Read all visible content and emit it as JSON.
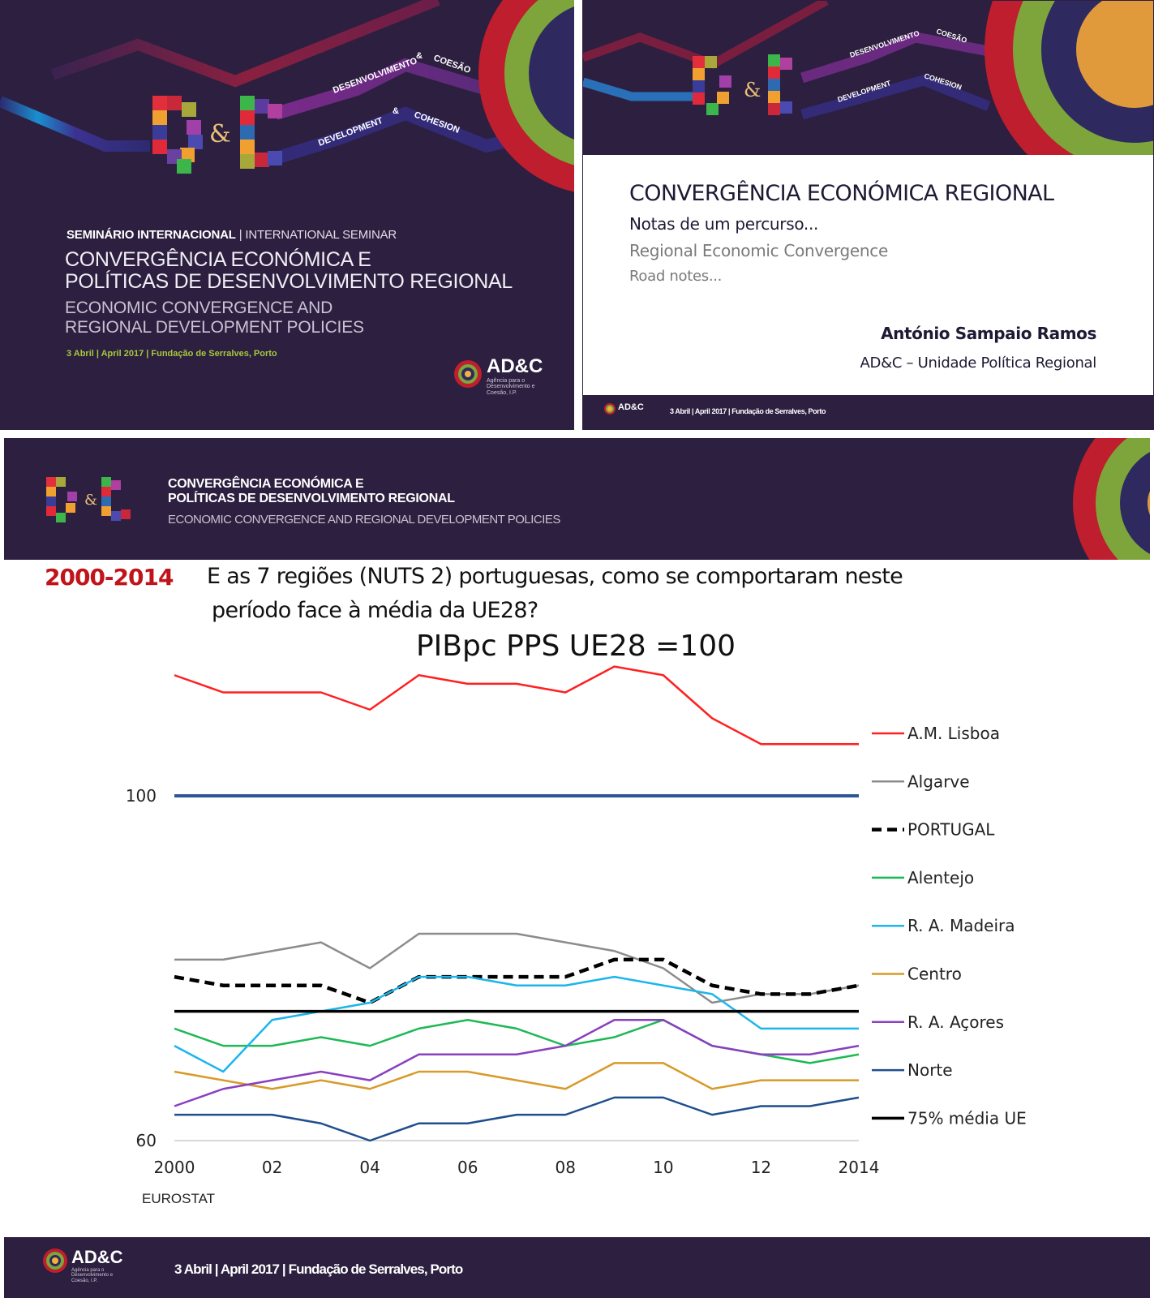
{
  "slide1": {
    "kicker_bold": "SEMINÁRIO INTERNACIONAL",
    "kicker_sep": "|",
    "kicker_thin": "INTERNATIONAL SEMINAR",
    "title_line1": "CONVERGÊNCIA ECONÓMICA E",
    "title_line2": "POLÍTICAS DE DESENVOLVIMENTO REGIONAL",
    "subtitle_line1": "ECONOMIC CONVERGENCE AND",
    "subtitle_line2": "REGIONAL DEVELOPMENT POLICIES",
    "date_place": "3 Abril | April 2017 | Fundação de Serralves, Porto",
    "ribbon_top_pt": "DESENVOLVIMENTO",
    "ribbon_top_amp": "&",
    "ribbon_top_pt2": "COESÃO",
    "ribbon_bottom_en": "DEVELOPMENT",
    "ribbon_bottom_amp": "&",
    "ribbon_bottom_en2": "COHESION",
    "logo_amp": "&",
    "logo": {
      "wordmark": "AD&C",
      "tagline_1": "Agência para o",
      "tagline_2": "Desenvolvimento e",
      "tagline_3": "Coesão, I.P."
    }
  },
  "slide2": {
    "title": "CONVERGÊNCIA ECONÓMICA REGIONAL",
    "subtitle_pt": "Notas de um percurso...",
    "title_en": "Regional Economic Convergence",
    "subtitle_en": "Road notes...",
    "author": "António Sampaio Ramos",
    "unit": "AD&C – Unidade Política Regional",
    "footer_date": "3 Abril | April 2017 | Fundação de Serralves, Porto",
    "logo_wordmark": "AD&C",
    "ribbon_top_pt": "DESENVOLVIMENTO",
    "ribbon_top_pt2": "COESÃO",
    "ribbon_bottom_en": "DEVELOPMENT",
    "ribbon_bottom_en2": "COHESION",
    "amp": "&"
  },
  "slide3": {
    "header_title_line1": "CONVERGÊNCIA ECONÓMICA E",
    "header_title_line2": "POLÍTICAS DE DESENVOLVIMENTO REGIONAL",
    "header_subtitle": "ECONOMIC CONVERGENCE AND REGIONAL DEVELOPMENT POLICIES",
    "period": "2000-2014",
    "question_line1": "E as 7 regiões (NUTS 2) portuguesas, como se comportaram neste",
    "question_line2": "período face à média da UE28?",
    "footer_date": "3 Abril | April 2017 | Fundação de Serralves, Porto",
    "logo_wordmark": "AD&C",
    "logo_amp": "&",
    "logo_tagline_1": "Agência para o",
    "logo_tagline_2": "Desenvolvimento e",
    "logo_tagline_3": "Coesão, I.P."
  },
  "colors": {
    "brand_purple": "#2c1f3f",
    "brand_red": "#be1e2d",
    "brand_green": "#7ea53b",
    "brand_navy": "#2e2a60",
    "brand_orange": "#e09a3c",
    "accent_date_green": "#a7c83d",
    "period_red": "#c0141b"
  },
  "chart_data": {
    "type": "line",
    "title": "PIBpc PPS UE28 =100",
    "source": "EUROSTAT",
    "xlabel": "",
    "ylabel": "",
    "x": [
      2000,
      2001,
      2002,
      2003,
      2004,
      2005,
      2006,
      2007,
      2008,
      2009,
      2010,
      2011,
      2012,
      2013,
      2014
    ],
    "xtick_values": [
      2000,
      2002,
      2004,
      2006,
      2008,
      2010,
      2012,
      2014
    ],
    "xtick_labels": [
      "2000",
      "02",
      "04",
      "06",
      "08",
      "10",
      "12",
      "2014"
    ],
    "ytick_values": [
      60,
      100
    ],
    "ytick_labels": [
      "60",
      "100"
    ],
    "ylim": [
      60,
      116
    ],
    "grid": false,
    "legend_position": "right",
    "reference_line": {
      "name": "UE28",
      "value": 100,
      "color": "#2f5597"
    },
    "series": [
      {
        "name": "A.M. Lisboa",
        "color": "#ff2020",
        "dash": false,
        "values": [
          114,
          112,
          112,
          112,
          110,
          114,
          113,
          113,
          112,
          115,
          114,
          109,
          106,
          106,
          106
        ]
      },
      {
        "name": "Algarve",
        "color": "#8c8c8c",
        "dash": false,
        "values": [
          81,
          81,
          82,
          83,
          80,
          84,
          84,
          84,
          83,
          82,
          80,
          76,
          77,
          77,
          78
        ]
      },
      {
        "name": "PORTUGAL",
        "color": "#000000",
        "dash": true,
        "values": [
          79,
          78,
          78,
          78,
          76,
          79,
          79,
          79,
          79,
          81,
          81,
          78,
          77,
          77,
          78
        ]
      },
      {
        "name": "Alentejo",
        "color": "#1db954",
        "dash": false,
        "values": [
          73,
          71,
          71,
          72,
          71,
          73,
          74,
          73,
          71,
          72,
          74,
          71,
          70,
          69,
          70
        ]
      },
      {
        "name": "R. A. Madeira",
        "color": "#1cb5ec",
        "dash": false,
        "values": [
          71,
          68,
          74,
          75,
          76,
          79,
          79,
          78,
          78,
          79,
          78,
          77,
          73,
          73,
          73
        ]
      },
      {
        "name": "Centro",
        "color": "#d89a2a",
        "dash": false,
        "values": [
          68,
          67,
          66,
          67,
          66,
          68,
          68,
          67,
          66,
          69,
          69,
          66,
          67,
          67,
          67
        ]
      },
      {
        "name": "R. A. Açores",
        "color": "#8a3fbf",
        "dash": false,
        "values": [
          64,
          66,
          67,
          68,
          67,
          70,
          70,
          70,
          71,
          74,
          74,
          71,
          70,
          70,
          71
        ]
      },
      {
        "name": "Norte",
        "color": "#1f4e8c",
        "dash": false,
        "values": [
          63,
          63,
          63,
          62,
          60,
          62,
          62,
          63,
          63,
          65,
          65,
          63,
          64,
          64,
          65
        ]
      },
      {
        "name": "75% média UE",
        "color": "#000000",
        "dash": false,
        "values": [
          75,
          75,
          75,
          75,
          75,
          75,
          75,
          75,
          75,
          75,
          75,
          75,
          75,
          75,
          75
        ]
      }
    ]
  }
}
